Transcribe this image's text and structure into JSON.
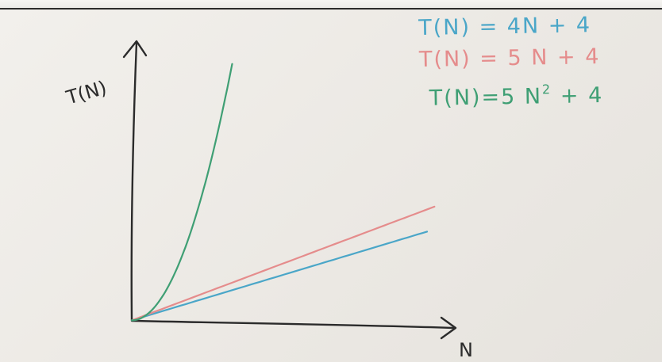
{
  "colors": {
    "background": "#efede9",
    "ink": "#2b2b2b",
    "blue": "#4aa6c8",
    "red": "#e58c8c",
    "green": "#3f9f74"
  },
  "chart_data": {
    "type": "line",
    "title": "",
    "xlabel": "N",
    "ylabel": "T(N)",
    "xlim": [
      0,
      20
    ],
    "ylim": [
      0,
      250
    ],
    "grid": false,
    "legend_placement": "top-right",
    "series": [
      {
        "name": "T(N) = 4N + 4",
        "name_base": "T(N) = 4N + 4",
        "color": "#4aa6c8",
        "a": 0,
        "b": 4,
        "c": 4,
        "x_max": 20
      },
      {
        "name": "T(N) = 5 N + 4",
        "name_base": "T(N) = 5 N + 4",
        "color": "#e58c8c",
        "a": 0,
        "b": 5,
        "c": 4,
        "x_max": 20.5
      },
      {
        "name": "T(N)=5 N² + 4",
        "name_base": "T(N)=5 N",
        "name_exp": "2",
        "name_tail": " + 4",
        "color": "#3f9f74",
        "a": 5,
        "b": 0,
        "c": 4,
        "x_max": 6.8
      }
    ]
  }
}
